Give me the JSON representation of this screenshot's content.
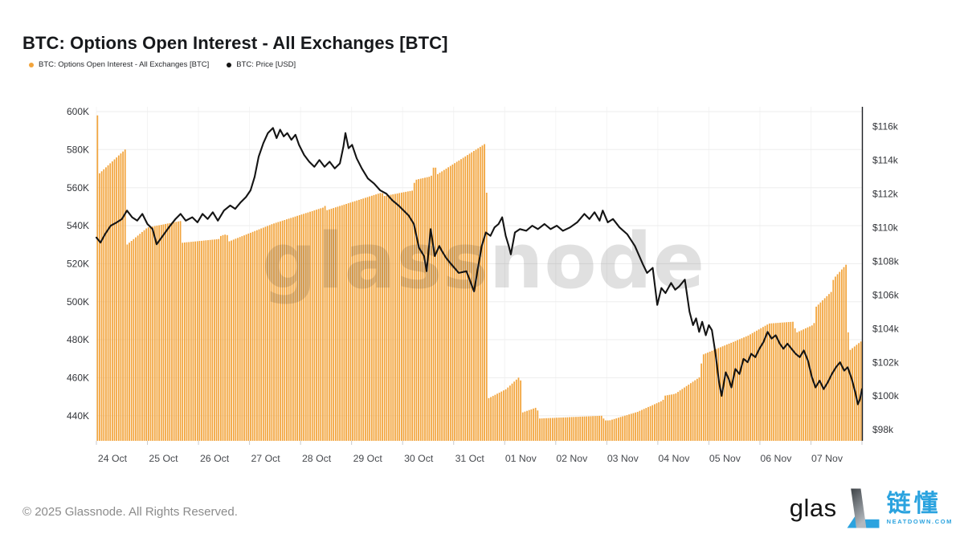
{
  "header": {
    "title": "BTC: Options Open Interest - All Exchanges [BTC]"
  },
  "legend": [
    {
      "label": "BTC: Options Open Interest - All Exchanges [BTC]",
      "color": "#F2A43C"
    },
    {
      "label": "BTC: Price [USD]",
      "color": "#141414"
    }
  ],
  "watermark": "glassnode",
  "footer": {
    "copyright": "© 2025 Glassnode. All Rights Reserved.",
    "brand_partial": "glas",
    "partner_name_cn": "链懂",
    "partner_domain": "NEATDOWN.COM"
  },
  "chart_data": {
    "type": "mixed",
    "title": "BTC: Options Open Interest - All Exchanges [BTC]",
    "x_axis": {
      "labels": [
        "24 Oct",
        "25 Oct",
        "26 Oct",
        "27 Oct",
        "28 Oct",
        "29 Oct",
        "30 Oct",
        "31 Oct",
        "01 Nov",
        "02 Nov",
        "03 Nov",
        "04 Nov",
        "05 Nov",
        "06 Nov",
        "07 Nov"
      ],
      "span_days": 15
    },
    "left_axis": {
      "tick_labels": [
        "600K",
        "580K",
        "560K",
        "540K",
        "520K",
        "500K",
        "480K",
        "460K",
        "440K"
      ],
      "tick_values": [
        600,
        580,
        560,
        540,
        520,
        500,
        480,
        460,
        440
      ],
      "unit": "BTC, thousands"
    },
    "right_axis": {
      "tick_labels": [
        "$116k",
        "$114k",
        "$112k",
        "$110k",
        "$108k",
        "$106k",
        "$104k",
        "$102k",
        "$100k",
        "$98k"
      ],
      "tick_values": [
        116,
        114,
        112,
        110,
        108,
        106,
        104,
        102,
        100,
        98
      ],
      "unit": "USD, thousands"
    },
    "series": [
      {
        "name": "BTC: Options Open Interest - All Exchanges [BTC]",
        "type": "bar",
        "color": "#F2A43C",
        "unit": "K BTC",
        "bar_resolution_hours": 1,
        "breakpoints_days_value": [
          [
            0.0,
            598
          ],
          [
            0.04,
            598
          ],
          [
            0.04,
            567
          ],
          [
            0.58,
            580.5
          ],
          [
            0.6,
            530
          ],
          [
            1.0,
            539
          ],
          [
            1.66,
            542.5
          ],
          [
            1.68,
            531
          ],
          [
            2.42,
            533
          ],
          [
            2.44,
            534.8
          ],
          [
            2.56,
            535.5
          ],
          [
            2.58,
            531.5
          ],
          [
            3.46,
            541
          ],
          [
            4.44,
            549.5
          ],
          [
            4.46,
            552.5
          ],
          [
            4.5,
            548
          ],
          [
            5.6,
            557.5
          ],
          [
            5.62,
            555.5
          ],
          [
            6.2,
            558.5
          ],
          [
            6.24,
            564
          ],
          [
            6.56,
            566
          ],
          [
            6.6,
            570.5
          ],
          [
            6.66,
            570.5
          ],
          [
            6.68,
            567
          ],
          [
            7.64,
            583.5
          ],
          [
            7.67,
            449
          ],
          [
            8.03,
            454
          ],
          [
            8.31,
            461
          ],
          [
            8.33,
            441.5
          ],
          [
            8.64,
            444.5
          ],
          [
            8.66,
            438.5
          ],
          [
            9.92,
            440
          ],
          [
            9.95,
            437.5
          ],
          [
            10.05,
            437.5
          ],
          [
            10.6,
            442
          ],
          [
            11.1,
            448
          ],
          [
            11.13,
            450.5
          ],
          [
            11.34,
            451.5
          ],
          [
            11.83,
            460.5
          ],
          [
            11.87,
            472
          ],
          [
            12.76,
            482
          ],
          [
            13.18,
            488.5
          ],
          [
            13.67,
            489.5
          ],
          [
            13.7,
            483.5
          ],
          [
            14.06,
            488
          ],
          [
            14.09,
            497
          ],
          [
            14.41,
            505.5
          ],
          [
            14.44,
            512
          ],
          [
            14.69,
            519.5
          ],
          [
            14.74,
            474
          ],
          [
            15.0,
            479.5
          ]
        ]
      },
      {
        "name": "BTC: Price [USD]",
        "type": "line",
        "color": "#141414",
        "unit": "$k",
        "points_days_value": [
          [
            0,
            109.4
          ],
          [
            0.08,
            109.1
          ],
          [
            0.17,
            109.6
          ],
          [
            0.28,
            110.1
          ],
          [
            0.4,
            110.3
          ],
          [
            0.5,
            110.5
          ],
          [
            0.6,
            111
          ],
          [
            0.7,
            110.6
          ],
          [
            0.8,
            110.4
          ],
          [
            0.9,
            110.8
          ],
          [
            1,
            110.2
          ],
          [
            1.1,
            109.9
          ],
          [
            1.18,
            109
          ],
          [
            1.3,
            109.5
          ],
          [
            1.42,
            110
          ],
          [
            1.55,
            110.5
          ],
          [
            1.65,
            110.8
          ],
          [
            1.75,
            110.4
          ],
          [
            1.88,
            110.6
          ],
          [
            1.98,
            110.3
          ],
          [
            2.08,
            110.8
          ],
          [
            2.18,
            110.5
          ],
          [
            2.28,
            110.9
          ],
          [
            2.38,
            110.4
          ],
          [
            2.5,
            111
          ],
          [
            2.62,
            111.3
          ],
          [
            2.72,
            111.1
          ],
          [
            2.83,
            111.5
          ],
          [
            2.93,
            111.8
          ],
          [
            3.02,
            112.2
          ],
          [
            3.1,
            113
          ],
          [
            3.18,
            114.2
          ],
          [
            3.27,
            115
          ],
          [
            3.36,
            115.6
          ],
          [
            3.46,
            115.9
          ],
          [
            3.53,
            115.3
          ],
          [
            3.6,
            115.8
          ],
          [
            3.67,
            115.4
          ],
          [
            3.74,
            115.6
          ],
          [
            3.82,
            115.2
          ],
          [
            3.9,
            115.5
          ],
          [
            3.97,
            114.9
          ],
          [
            4.07,
            114.3
          ],
          [
            4.17,
            113.9
          ],
          [
            4.27,
            113.6
          ],
          [
            4.37,
            114
          ],
          [
            4.47,
            113.6
          ],
          [
            4.57,
            113.9
          ],
          [
            4.67,
            113.5
          ],
          [
            4.77,
            113.8
          ],
          [
            4.84,
            114.8
          ],
          [
            4.88,
            115.6
          ],
          [
            4.94,
            114.7
          ],
          [
            5.01,
            114.9
          ],
          [
            5.1,
            114.1
          ],
          [
            5.2,
            113.5
          ],
          [
            5.32,
            112.9
          ],
          [
            5.44,
            112.6
          ],
          [
            5.56,
            112.2
          ],
          [
            5.68,
            112
          ],
          [
            5.8,
            111.6
          ],
          [
            5.92,
            111.3
          ],
          [
            6.02,
            111
          ],
          [
            6.12,
            110.7
          ],
          [
            6.22,
            110.2
          ],
          [
            6.32,
            108.8
          ],
          [
            6.42,
            108.3
          ],
          [
            6.47,
            107.4
          ],
          [
            6.55,
            109.9
          ],
          [
            6.63,
            108.3
          ],
          [
            6.72,
            108.9
          ],
          [
            6.77,
            108.6
          ],
          [
            6.85,
            108.2
          ],
          [
            6.93,
            107.9
          ],
          [
            7.1,
            107.3
          ],
          [
            7.25,
            107.4
          ],
          [
            7.4,
            106.2
          ],
          [
            7.47,
            107.5
          ],
          [
            7.55,
            108.9
          ],
          [
            7.63,
            109.7
          ],
          [
            7.72,
            109.5
          ],
          [
            7.8,
            110
          ],
          [
            7.88,
            110.2
          ],
          [
            7.95,
            110.6
          ],
          [
            8.02,
            109.5
          ],
          [
            8.08,
            108.9
          ],
          [
            8.12,
            108.4
          ],
          [
            8.2,
            109.7
          ],
          [
            8.3,
            109.9
          ],
          [
            8.42,
            109.8
          ],
          [
            8.54,
            110.1
          ],
          [
            8.65,
            109.9
          ],
          [
            8.78,
            110.2
          ],
          [
            8.9,
            109.9
          ],
          [
            9.02,
            110.1
          ],
          [
            9.14,
            109.8
          ],
          [
            9.28,
            110
          ],
          [
            9.42,
            110.3
          ],
          [
            9.56,
            110.8
          ],
          [
            9.66,
            110.5
          ],
          [
            9.76,
            110.9
          ],
          [
            9.86,
            110.4
          ],
          [
            9.92,
            111
          ],
          [
            10.02,
            110.3
          ],
          [
            10.12,
            110.5
          ],
          [
            10.25,
            110
          ],
          [
            10.4,
            109.6
          ],
          [
            10.55,
            108.9
          ],
          [
            10.71,
            107.8
          ],
          [
            10.79,
            107.3
          ],
          [
            10.9,
            107.6
          ],
          [
            10.99,
            105.4
          ],
          [
            11.07,
            106.4
          ],
          [
            11.15,
            106.1
          ],
          [
            11.26,
            106.7
          ],
          [
            11.34,
            106.3
          ],
          [
            11.42,
            106.5
          ],
          [
            11.53,
            106.9
          ],
          [
            11.62,
            105
          ],
          [
            11.69,
            104.2
          ],
          [
            11.75,
            104.6
          ],
          [
            11.81,
            103.8
          ],
          [
            11.87,
            104.4
          ],
          [
            11.94,
            103.6
          ],
          [
            12,
            104.2
          ],
          [
            12.06,
            103.9
          ],
          [
            12.13,
            102.5
          ],
          [
            12.2,
            100.8
          ],
          [
            12.25,
            100
          ],
          [
            12.33,
            101.4
          ],
          [
            12.39,
            101
          ],
          [
            12.44,
            100.5
          ],
          [
            12.52,
            101.6
          ],
          [
            12.6,
            101.3
          ],
          [
            12.68,
            102.2
          ],
          [
            12.76,
            102
          ],
          [
            12.83,
            102.5
          ],
          [
            12.91,
            102.3
          ],
          [
            12.99,
            102.8
          ],
          [
            13.07,
            103.2
          ],
          [
            13.15,
            103.8
          ],
          [
            13.23,
            103.4
          ],
          [
            13.31,
            103.6
          ],
          [
            13.39,
            103.1
          ],
          [
            13.46,
            102.8
          ],
          [
            13.54,
            103.1
          ],
          [
            13.62,
            102.8
          ],
          [
            13.7,
            102.5
          ],
          [
            13.78,
            102.3
          ],
          [
            13.86,
            102.7
          ],
          [
            13.94,
            102.1
          ],
          [
            14.02,
            101.1
          ],
          [
            14.09,
            100.5
          ],
          [
            14.17,
            100.9
          ],
          [
            14.25,
            100.4
          ],
          [
            14.33,
            100.8
          ],
          [
            14.41,
            101.3
          ],
          [
            14.49,
            101.7
          ],
          [
            14.57,
            102
          ],
          [
            14.65,
            101.5
          ],
          [
            14.72,
            101.7
          ],
          [
            14.8,
            101
          ],
          [
            14.87,
            100.2
          ],
          [
            14.92,
            99.5
          ],
          [
            14.96,
            99.8
          ],
          [
            15,
            100.4
          ]
        ]
      }
    ],
    "grid": {
      "horizontal": true,
      "vertical_days": true
    },
    "colors": {
      "bar": "#F2A43C",
      "line": "#141414",
      "gridline": "#ededed",
      "axis_line": "#1d1f24"
    }
  }
}
